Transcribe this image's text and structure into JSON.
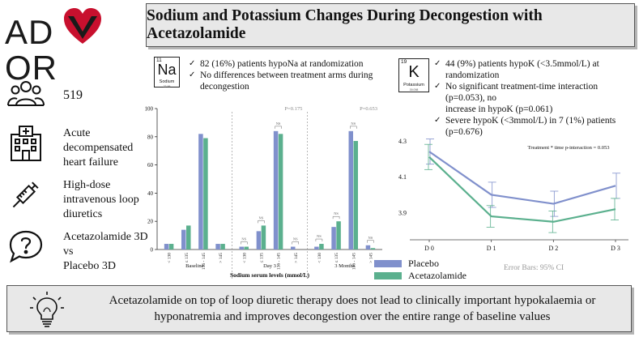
{
  "logo": {
    "text_left": "AD",
    "text_right": "OR",
    "heart_color": "#c8102e"
  },
  "title": "Sodium and Potassium Changes During Decongestion with Acetazolamide",
  "sidebar": {
    "patients_count": "519",
    "condition_line1": "Acute",
    "condition_line2": "decompensated",
    "condition_line3": "heart failure",
    "therapy_line1": "High-dose",
    "therapy_line2": "intravenous loop",
    "therapy_line3": "diuretics",
    "arm_line1": "Acetazolamide 3D",
    "arm_line2": "vs",
    "arm_line3": "Placebo 3D"
  },
  "sodium_panel": {
    "element_number": "11",
    "element_symbol": "Na",
    "element_name": "Sodium",
    "element_mass": "22.99",
    "bullet1": "82 (16%) patients hypoNa at randomization",
    "bullet2_line1": "No differences between treatment arms during",
    "bullet2_line2": "decongestion"
  },
  "potassium_panel": {
    "element_number": "19",
    "element_symbol": "K",
    "element_name": "Potassium",
    "element_mass": "39.098",
    "bullet1": "44 (9%) patients hypoK (<3.5mmol/L) at randomization",
    "bullet2_line1": "No significant treatment-time interaction (p=0.053), no",
    "bullet2_line2": "increase in hypoK (p=0.061)",
    "bullet3": "Severe hypoK (<3mmol/L) in 7 (1%) patients (p=0.676)"
  },
  "legend": {
    "placebo": "Placebo",
    "acetazolamide": "Acetazolamide",
    "error_bars": "Error Bars: 95% CI"
  },
  "colors": {
    "placebo": "#8090cc",
    "acetazolamide": "#5bb08e"
  },
  "footer": {
    "line1": "Acetazolamide on top of loop diuretic therapy does not lead to clinically important hypokalaemia or",
    "line2": "hyponatremia and improves decongestion over the entire range of baseline values"
  },
  "chart_data": [
    {
      "type": "bar",
      "xlabel": "Sodium serum levels (mmol/L)",
      "ylabel": "",
      "ylim": [
        0,
        100
      ],
      "yticks": [
        0,
        20,
        40,
        60,
        80,
        100
      ],
      "grid": false,
      "groups": [
        {
          "name": "Baseline",
          "categories": [
            "< 130",
            "≤ 135",
            "136 - 145",
            "> 145"
          ],
          "placebo": [
            4,
            14,
            82,
            4
          ],
          "acetazolamide": [
            4,
            17,
            79,
            4
          ],
          "p_value": "",
          "ns_labels": []
        },
        {
          "name": "Day 3",
          "categories": [
            "< 130",
            "≤ 135",
            "136 - 145",
            "> 145"
          ],
          "placebo": [
            2,
            13,
            84,
            2
          ],
          "acetazolamide": [
            2,
            17,
            82,
            0
          ],
          "p_value": "P=0.175",
          "ns_labels": [
            "NS",
            "NS",
            "NS",
            "NS"
          ]
        },
        {
          "name": "3 Months",
          "categories": [
            "< 130",
            "≤ 135",
            "136 - 145",
            "> 145"
          ],
          "placebo": [
            2,
            16,
            84,
            3
          ],
          "acetazolamide": [
            4,
            20,
            77,
            1
          ],
          "p_value": "P=0.653",
          "ns_labels": [
            "NS",
            "NS",
            "NS",
            "NS"
          ]
        }
      ]
    },
    {
      "type": "line",
      "x": [
        "D 0",
        "D 1",
        "D 2",
        "D 3"
      ],
      "ylim": [
        3.75,
        4.38
      ],
      "yticks": [
        "3.9",
        "4.1",
        "4.3"
      ],
      "annotation": "Treatment * time p-interaction = 0.053",
      "series": [
        {
          "name": "Placebo",
          "values": [
            4.24,
            4.0,
            3.95,
            4.05
          ],
          "ci_low": [
            4.17,
            3.93,
            3.88,
            3.98
          ],
          "ci_high": [
            4.31,
            4.07,
            4.02,
            4.12
          ]
        },
        {
          "name": "Acetazolamide",
          "values": [
            4.21,
            3.88,
            3.85,
            3.92
          ],
          "ci_low": [
            4.14,
            3.82,
            3.79,
            3.86
          ],
          "ci_high": [
            4.28,
            3.94,
            3.91,
            3.98
          ]
        }
      ]
    }
  ]
}
